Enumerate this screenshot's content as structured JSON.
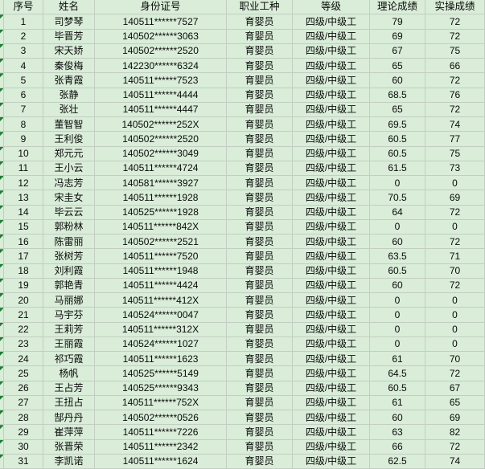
{
  "app": {
    "kind": "spreadsheet-table",
    "language": "zh-CN"
  },
  "colors": {
    "cell_bg": "#d9edd9",
    "grid_line": "#c2cec2",
    "error_indicator_green": "#1e7e34",
    "text": "#0a0a0a"
  },
  "icons": {
    "error_triangle": "cell-error-corner-triangle"
  },
  "table": {
    "columns": [
      "序号",
      "姓名",
      "身份证号",
      "职业工种",
      "等级",
      "理论成绩",
      "实操成绩"
    ],
    "rows": [
      {
        "no": "1",
        "name": "司梦琴",
        "id_number": "140511******7527",
        "occupation": "育婴员",
        "level": "四级/中级工",
        "theory_score": "79",
        "practical_score": "72"
      },
      {
        "no": "2",
        "name": "毕晋芳",
        "id_number": "140502******3063",
        "occupation": "育婴员",
        "level": "四级/中级工",
        "theory_score": "69",
        "practical_score": "72"
      },
      {
        "no": "3",
        "name": "宋天娇",
        "id_number": "140502******2520",
        "occupation": "育婴员",
        "level": "四级/中级工",
        "theory_score": "67",
        "practical_score": "75"
      },
      {
        "no": "4",
        "name": "秦俊梅",
        "id_number": "142230******6324",
        "occupation": "育婴员",
        "level": "四级/中级工",
        "theory_score": "65",
        "practical_score": "66"
      },
      {
        "no": "5",
        "name": "张青霞",
        "id_number": "140511******7523",
        "occupation": "育婴员",
        "level": "四级/中级工",
        "theory_score": "60",
        "practical_score": "72"
      },
      {
        "no": "6",
        "name": "张静",
        "id_number": "140511******4444",
        "occupation": "育婴员",
        "level": "四级/中级工",
        "theory_score": "68.5",
        "practical_score": "76"
      },
      {
        "no": "7",
        "name": "张壮",
        "id_number": "140511******4447",
        "occupation": "育婴员",
        "level": "四级/中级工",
        "theory_score": "65",
        "practical_score": "72"
      },
      {
        "no": "8",
        "name": "董智智",
        "id_number": "140502******252X",
        "occupation": "育婴员",
        "level": "四级/中级工",
        "theory_score": "69.5",
        "practical_score": "74"
      },
      {
        "no": "9",
        "name": "王利俊",
        "id_number": "140502******2520",
        "occupation": "育婴员",
        "level": "四级/中级工",
        "theory_score": "60.5",
        "practical_score": "77"
      },
      {
        "no": "10",
        "name": "郑元元",
        "id_number": "140502******3049",
        "occupation": "育婴员",
        "level": "四级/中级工",
        "theory_score": "60.5",
        "practical_score": "75"
      },
      {
        "no": "11",
        "name": "王小云",
        "id_number": "140511******4724",
        "occupation": "育婴员",
        "level": "四级/中级工",
        "theory_score": "61.5",
        "practical_score": "73"
      },
      {
        "no": "12",
        "name": "冯志芳",
        "id_number": "140581******3927",
        "occupation": "育婴员",
        "level": "四级/中级工",
        "theory_score": "0",
        "practical_score": "0"
      },
      {
        "no": "13",
        "name": "宋圭女",
        "id_number": "140511******1928",
        "occupation": "育婴员",
        "level": "四级/中级工",
        "theory_score": "70.5",
        "practical_score": "69"
      },
      {
        "no": "14",
        "name": "毕云云",
        "id_number": "140525******1928",
        "occupation": "育婴员",
        "level": "四级/中级工",
        "theory_score": "64",
        "practical_score": "72"
      },
      {
        "no": "15",
        "name": "郭粉林",
        "id_number": "140511******842X",
        "occupation": "育婴员",
        "level": "四级/中级工",
        "theory_score": "0",
        "practical_score": "0"
      },
      {
        "no": "16",
        "name": "陈雷丽",
        "id_number": "140502******2521",
        "occupation": "育婴员",
        "level": "四级/中级工",
        "theory_score": "60",
        "practical_score": "72"
      },
      {
        "no": "17",
        "name": "张树芳",
        "id_number": "140511******7520",
        "occupation": "育婴员",
        "level": "四级/中级工",
        "theory_score": "63.5",
        "practical_score": "71"
      },
      {
        "no": "18",
        "name": "刘利霞",
        "id_number": "140511******1948",
        "occupation": "育婴员",
        "level": "四级/中级工",
        "theory_score": "60.5",
        "practical_score": "70"
      },
      {
        "no": "19",
        "name": "郭艳青",
        "id_number": "140511******4424",
        "occupation": "育婴员",
        "level": "四级/中级工",
        "theory_score": "60",
        "practical_score": "72"
      },
      {
        "no": "20",
        "name": "马丽娜",
        "id_number": "140511******412X",
        "occupation": "育婴员",
        "level": "四级/中级工",
        "theory_score": "0",
        "practical_score": "0"
      },
      {
        "no": "21",
        "name": "马宇芬",
        "id_number": "140524******0047",
        "occupation": "育婴员",
        "level": "四级/中级工",
        "theory_score": "0",
        "practical_score": "0"
      },
      {
        "no": "22",
        "name": "王莉芳",
        "id_number": "140511******312X",
        "occupation": "育婴员",
        "level": "四级/中级工",
        "theory_score": "0",
        "practical_score": "0"
      },
      {
        "no": "23",
        "name": "王丽霞",
        "id_number": "140524******1027",
        "occupation": "育婴员",
        "level": "四级/中级工",
        "theory_score": "0",
        "practical_score": "0"
      },
      {
        "no": "24",
        "name": "祁巧霞",
        "id_number": "140511******1623",
        "occupation": "育婴员",
        "level": "四级/中级工",
        "theory_score": "61",
        "practical_score": "70"
      },
      {
        "no": "25",
        "name": "杨帆",
        "id_number": "140525******5149",
        "occupation": "育婴员",
        "level": "四级/中级工",
        "theory_score": "64.5",
        "practical_score": "72"
      },
      {
        "no": "26",
        "name": "王占芳",
        "id_number": "140525******9343",
        "occupation": "育婴员",
        "level": "四级/中级工",
        "theory_score": "60.5",
        "practical_score": "67"
      },
      {
        "no": "27",
        "name": "王扭占",
        "id_number": "140511******752X",
        "occupation": "育婴员",
        "level": "四级/中级工",
        "theory_score": "61",
        "practical_score": "65"
      },
      {
        "no": "28",
        "name": "郜丹丹",
        "id_number": "140502******0526",
        "occupation": "育婴员",
        "level": "四级/中级工",
        "theory_score": "60",
        "practical_score": "69"
      },
      {
        "no": "29",
        "name": "崔萍萍",
        "id_number": "140511******7226",
        "occupation": "育婴员",
        "level": "四级/中级工",
        "theory_score": "63",
        "practical_score": "82"
      },
      {
        "no": "30",
        "name": "张晋荣",
        "id_number": "140511******2342",
        "occupation": "育婴员",
        "level": "四级/中级工",
        "theory_score": "66",
        "practical_score": "72"
      },
      {
        "no": "31",
        "name": "李凯诺",
        "id_number": "140511******1624",
        "occupation": "育婴员",
        "level": "四级/中级工",
        "theory_score": "62.5",
        "practical_score": "74"
      }
    ]
  }
}
